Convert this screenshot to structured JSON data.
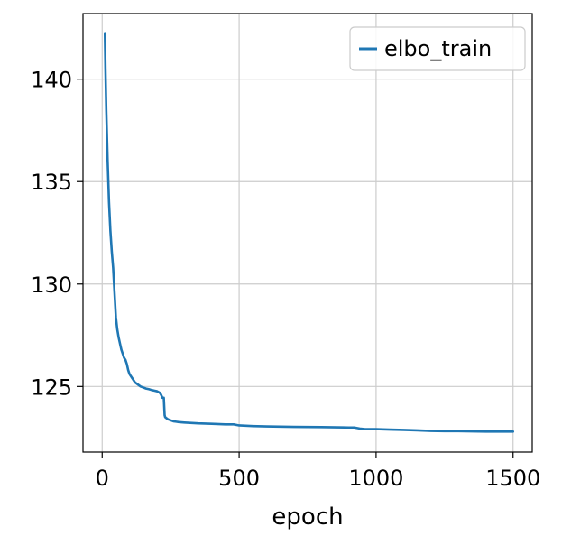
{
  "chart_data": {
    "type": "line",
    "title": "",
    "xlabel": "epoch",
    "ylabel": "",
    "xlim": [
      -70,
      1570
    ],
    "ylim": [
      121.8,
      143.2
    ],
    "xticks": [
      0,
      500,
      1000,
      1500
    ],
    "yticks": [
      125,
      130,
      135,
      140
    ],
    "grid": true,
    "legend": "top-right",
    "series": [
      {
        "name": "elbo_train",
        "color": "#1f77b4",
        "x": [
          10,
          12,
          15,
          20,
          25,
          30,
          35,
          40,
          45,
          50,
          55,
          60,
          65,
          70,
          75,
          80,
          85,
          90,
          95,
          100,
          110,
          120,
          130,
          140,
          150,
          160,
          170,
          180,
          190,
          200,
          210,
          215,
          220,
          225,
          228,
          230,
          235,
          240,
          250,
          260,
          270,
          280,
          300,
          350,
          400,
          450,
          480,
          500,
          550,
          600,
          700,
          800,
          900,
          920,
          940,
          960,
          1000,
          1050,
          1100,
          1150,
          1200,
          1250,
          1300,
          1400,
          1500
        ],
        "values": [
          142.2,
          140.5,
          138.5,
          136.0,
          134.0,
          132.6,
          131.6,
          130.8,
          129.6,
          128.4,
          127.8,
          127.4,
          127.1,
          126.8,
          126.6,
          126.4,
          126.3,
          126.1,
          125.8,
          125.6,
          125.4,
          125.2,
          125.1,
          125.0,
          124.95,
          124.9,
          124.87,
          124.83,
          124.8,
          124.77,
          124.7,
          124.6,
          124.45,
          124.45,
          123.6,
          123.5,
          123.45,
          123.4,
          123.35,
          123.3,
          123.28,
          123.26,
          123.24,
          123.2,
          123.18,
          123.15,
          123.15,
          123.1,
          123.07,
          123.05,
          123.03,
          123.02,
          123.0,
          123.0,
          122.95,
          122.92,
          122.92,
          122.9,
          122.88,
          122.86,
          122.83,
          122.82,
          122.82,
          122.8,
          122.8
        ]
      }
    ]
  }
}
